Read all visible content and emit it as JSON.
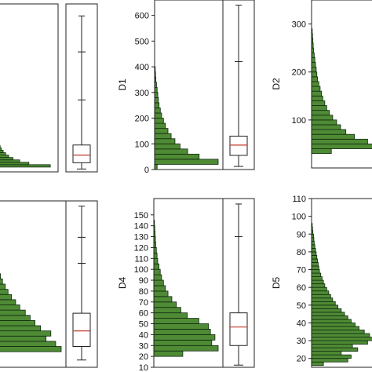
{
  "theme": {
    "bar_fill": "#4f8a35",
    "bar_stroke": "#0f2a0f",
    "median_color": "#c0392b",
    "box_color": "#222222"
  },
  "chart_data": [
    {
      "type": "bar",
      "orientation": "horizontal",
      "ylabel": "",
      "ylim": [
        0,
        700
      ],
      "yticks": [],
      "bins": [
        [
          10,
          20
        ],
        [
          20,
          30
        ],
        [
          30,
          40
        ],
        [
          40,
          50
        ],
        [
          50,
          60
        ],
        [
          60,
          70
        ],
        [
          70,
          80
        ],
        [
          80,
          90
        ],
        [
          90,
          100
        ],
        [
          100,
          110
        ],
        [
          110,
          120
        ],
        [
          120,
          130
        ],
        [
          130,
          140
        ],
        [
          140,
          150
        ],
        [
          150,
          160
        ],
        [
          160,
          170
        ],
        [
          170,
          180
        ],
        [
          180,
          190
        ],
        [
          190,
          200
        ],
        [
          200,
          210
        ],
        [
          210,
          220
        ],
        [
          220,
          230
        ],
        [
          230,
          240
        ],
        [
          240,
          250
        ],
        [
          250,
          260
        ],
        [
          260,
          270
        ],
        [
          270,
          280
        ],
        [
          280,
          290
        ],
        [
          290,
          300
        ]
      ],
      "counts": [
        5,
        95,
        60,
        45,
        34,
        27,
        22,
        18,
        15,
        13,
        11,
        9,
        8,
        7,
        6,
        5,
        4,
        3.5,
        3,
        2.5,
        2,
        1.5,
        1.2,
        1,
        0.8,
        0.6,
        0.4,
        0.3,
        0.2
      ],
      "count_max": 100,
      "box": {
        "whisker_low": 12,
        "q1": 38,
        "median": 70,
        "q3": 112,
        "whisker_high": 650,
        "marks": [
          300,
          500
        ]
      }
    },
    {
      "type": "bar",
      "orientation": "horizontal",
      "ylabel": "D1",
      "ylim": [
        0,
        660
      ],
      "yticks": [
        0,
        100,
        200,
        300,
        400,
        500,
        600
      ],
      "bins": [
        [
          0,
          20
        ],
        [
          20,
          40
        ],
        [
          40,
          60
        ],
        [
          60,
          80
        ],
        [
          80,
          100
        ],
        [
          100,
          120
        ],
        [
          120,
          140
        ],
        [
          140,
          160
        ],
        [
          160,
          180
        ],
        [
          180,
          200
        ],
        [
          200,
          220
        ],
        [
          220,
          240
        ],
        [
          240,
          260
        ],
        [
          260,
          280
        ],
        [
          280,
          300
        ],
        [
          300,
          320
        ],
        [
          320,
          340
        ],
        [
          340,
          360
        ],
        [
          360,
          380
        ],
        [
          380,
          400
        ]
      ],
      "counts": [
        4,
        100,
        70,
        52,
        40,
        32,
        26,
        21,
        17,
        14,
        11,
        9,
        7,
        6,
        5,
        4,
        3,
        2,
        1.5,
        1
      ],
      "count_max": 100,
      "box": {
        "whisker_low": 12,
        "q1": 55,
        "median": 95,
        "q3": 130,
        "whisker_high": 640,
        "marks": [
          420
        ]
      }
    },
    {
      "type": "bar",
      "orientation": "horizontal",
      "ylabel": "D2",
      "ylim": [
        0,
        350
      ],
      "yticks": [
        100,
        200,
        300
      ],
      "bins": [
        [
          30,
          40
        ],
        [
          40,
          50
        ],
        [
          50,
          60
        ],
        [
          60,
          70
        ],
        [
          70,
          80
        ],
        [
          80,
          90
        ],
        [
          90,
          100
        ],
        [
          100,
          110
        ],
        [
          110,
          120
        ],
        [
          120,
          130
        ],
        [
          130,
          140
        ],
        [
          140,
          150
        ],
        [
          150,
          160
        ],
        [
          160,
          170
        ],
        [
          170,
          180
        ],
        [
          180,
          190
        ],
        [
          190,
          200
        ],
        [
          200,
          210
        ],
        [
          210,
          220
        ],
        [
          220,
          230
        ],
        [
          230,
          240
        ],
        [
          240,
          250
        ],
        [
          250,
          260
        ],
        [
          260,
          270
        ],
        [
          270,
          280
        ],
        [
          280,
          290
        ]
      ],
      "counts": [
        30,
        100,
        85,
        65,
        52,
        44,
        38,
        32,
        27,
        23,
        20,
        17,
        15,
        13,
        11,
        9,
        8,
        7,
        6,
        5,
        4,
        3,
        2.5,
        2,
        1.5,
        1
      ],
      "count_max": 100,
      "box": null
    },
    {
      "type": "bar",
      "orientation": "horizontal",
      "ylabel": "",
      "ylim": [
        5,
        165
      ],
      "yticks": [],
      "bins": [
        [
          15,
          20
        ],
        [
          20,
          25
        ],
        [
          25,
          30
        ],
        [
          30,
          35
        ],
        [
          35,
          40
        ],
        [
          40,
          45
        ],
        [
          45,
          50
        ],
        [
          50,
          55
        ],
        [
          55,
          60
        ],
        [
          60,
          65
        ],
        [
          65,
          70
        ],
        [
          70,
          75
        ],
        [
          75,
          80
        ],
        [
          80,
          85
        ],
        [
          85,
          90
        ],
        [
          90,
          95
        ],
        [
          95,
          100
        ],
        [
          100,
          105
        ],
        [
          105,
          110
        ],
        [
          110,
          115
        ],
        [
          115,
          120
        ],
        [
          120,
          125
        ]
      ],
      "counts": [
        2,
        100,
        92,
        78,
        85,
        70,
        62,
        55,
        48,
        40,
        34,
        28,
        23,
        19,
        15,
        12,
        9,
        7,
        5,
        3,
        2,
        1
      ],
      "count_max": 100,
      "box": {
        "whisker_low": 12,
        "q1": 25,
        "median": 40,
        "q3": 57,
        "whisker_high": 160,
        "marks": [
          105,
          130
        ]
      }
    },
    {
      "type": "bar",
      "orientation": "horizontal",
      "ylabel": "D4",
      "ylim": [
        10,
        165
      ],
      "yticks": [
        10,
        20,
        30,
        40,
        50,
        60,
        70,
        80,
        90,
        100,
        110,
        120,
        130,
        140,
        150
      ],
      "bins": [
        [
          20,
          25
        ],
        [
          25,
          30
        ],
        [
          30,
          35
        ],
        [
          35,
          40
        ],
        [
          40,
          45
        ],
        [
          45,
          50
        ],
        [
          50,
          55
        ],
        [
          55,
          60
        ],
        [
          60,
          65
        ],
        [
          65,
          70
        ],
        [
          70,
          75
        ],
        [
          75,
          80
        ],
        [
          80,
          85
        ],
        [
          85,
          90
        ],
        [
          90,
          95
        ],
        [
          95,
          100
        ],
        [
          100,
          105
        ],
        [
          105,
          110
        ],
        [
          110,
          115
        ],
        [
          115,
          120
        ],
        [
          120,
          125
        ],
        [
          125,
          130
        ],
        [
          130,
          135
        ],
        [
          135,
          140
        ],
        [
          140,
          145
        ]
      ],
      "counts": [
        45,
        100,
        90,
        95,
        88,
        85,
        70,
        52,
        42,
        35,
        28,
        22,
        18,
        15,
        12,
        10,
        8,
        6,
        5,
        4,
        3,
        2.5,
        2,
        1.5,
        1
      ],
      "count_max": 100,
      "box": {
        "whisker_low": 12,
        "q1": 30,
        "median": 47,
        "q3": 60,
        "whisker_high": 160,
        "marks": [
          130
        ]
      }
    },
    {
      "type": "bar",
      "orientation": "horizontal",
      "ylabel": "D5",
      "ylim": [
        15,
        110
      ],
      "yticks": [
        20,
        30,
        40,
        50,
        60,
        70,
        80,
        90,
        100,
        110
      ],
      "bins": [
        [
          16,
          18
        ],
        [
          18,
          20
        ],
        [
          20,
          22
        ],
        [
          22,
          24
        ],
        [
          24,
          26
        ],
        [
          26,
          28
        ],
        [
          28,
          30
        ],
        [
          30,
          32
        ],
        [
          32,
          34
        ],
        [
          34,
          36
        ],
        [
          36,
          38
        ],
        [
          38,
          40
        ],
        [
          40,
          42
        ],
        [
          42,
          44
        ],
        [
          44,
          46
        ],
        [
          46,
          48
        ],
        [
          48,
          50
        ],
        [
          50,
          52
        ],
        [
          52,
          54
        ],
        [
          54,
          56
        ],
        [
          56,
          58
        ],
        [
          58,
          60
        ],
        [
          60,
          62
        ],
        [
          62,
          64
        ],
        [
          64,
          66
        ],
        [
          66,
          68
        ],
        [
          68,
          70
        ],
        [
          70,
          72
        ],
        [
          72,
          74
        ],
        [
          74,
          76
        ],
        [
          76,
          78
        ],
        [
          78,
          80
        ],
        [
          80,
          82
        ],
        [
          82,
          84
        ],
        [
          84,
          86
        ],
        [
          86,
          88
        ],
        [
          88,
          90
        ],
        [
          90,
          92
        ],
        [
          92,
          94
        ],
        [
          94,
          96
        ]
      ],
      "counts": [
        18,
        55,
        60,
        45,
        70,
        62,
        85,
        100,
        88,
        80,
        72,
        66,
        60,
        55,
        50,
        45,
        40,
        36,
        32,
        29,
        26,
        23,
        20,
        18,
        16,
        14,
        12,
        11,
        10,
        9,
        8,
        7,
        6,
        5,
        4,
        3.5,
        3,
        2,
        1.5,
        1
      ],
      "count_max": 100,
      "box": null
    }
  ]
}
